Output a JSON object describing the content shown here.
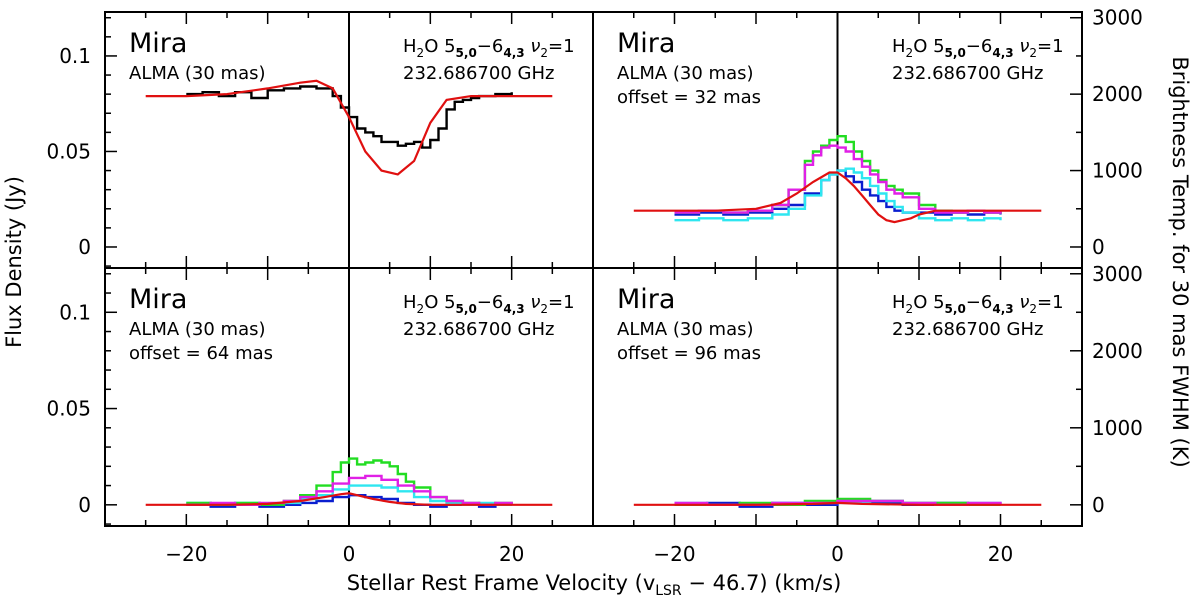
{
  "chart_data": {
    "type": "line",
    "title": "",
    "xlabel_main": "Stellar Rest Frame Velocity (v",
    "xlabel_sub": "LSR",
    "xlabel_tail": " − 46.7) (km/s)",
    "ylabel_left": "Flux Density (Jy)",
    "ylabel_right": "Brightness Temp. for 30 mas FWHM (K)",
    "xlim": [
      -30,
      30
    ],
    "ylim": [
      -0.011,
      0.123
    ],
    "x_ticks": [
      "−20",
      "0",
      "20"
    ],
    "x_tick_values": [
      -20,
      0,
      20
    ],
    "y_ticks": [
      "0",
      "0.05",
      "0.1"
    ],
    "y_tick_values": [
      0,
      0.05,
      0.1
    ],
    "right_ticks": [
      "0",
      "1000",
      "2000",
      "3000"
    ],
    "right_tick_values_K": [
      0,
      1000,
      2000,
      3000
    ],
    "K_per_Jy": 25000,
    "line_label_species": "H",
    "line_label_sub2": "2",
    "line_label_O": "O 5",
    "line_label_up": "5,0",
    "line_label_dash": "−6",
    "line_label_low": "4,3",
    "line_label_nu": " ν",
    "line_label_nu_sub": "2",
    "line_label_eq": "=1",
    "frequency": "232.686700 GHz",
    "star": "Mira",
    "instrument": "ALMA (30 mas)",
    "panels": [
      {
        "id": "top-left",
        "offset_label": "",
        "model_red": {
          "x": [
            -25,
            -20,
            -15,
            -10,
            -6,
            -4,
            -2,
            0,
            2,
            4,
            6,
            8,
            10,
            12,
            15,
            20,
            25
          ],
          "y": [
            0.079,
            0.079,
            0.08,
            0.083,
            0.086,
            0.087,
            0.083,
            0.068,
            0.05,
            0.04,
            0.038,
            0.045,
            0.065,
            0.077,
            0.079,
            0.079,
            0.079
          ]
        },
        "series": [
          {
            "name": "observed",
            "color": "#000000",
            "x": [
              -20,
              -18,
              -16,
              -14,
              -12,
              -10,
              -8,
              -6,
              -4,
              -2,
              -1,
              0,
              1,
              2,
              3,
              4,
              5,
              6,
              7,
              8,
              9,
              10,
              11,
              12,
              13,
              14,
              15,
              16,
              18,
              20
            ],
            "y": [
              0.08,
              0.081,
              0.079,
              0.081,
              0.078,
              0.082,
              0.083,
              0.084,
              0.083,
              0.079,
              0.073,
              0.068,
              0.062,
              0.06,
              0.058,
              0.055,
              0.055,
              0.053,
              0.054,
              0.055,
              0.052,
              0.056,
              0.062,
              0.072,
              0.076,
              0.077,
              0.078,
              0.079,
              0.08,
              0.081
            ]
          }
        ]
      },
      {
        "id": "top-right",
        "offset_label": "offset = 32 mas",
        "model_red": {
          "x": [
            -25,
            -20,
            -15,
            -10,
            -7,
            -5,
            -3,
            -1,
            0,
            1,
            2,
            3,
            4,
            5,
            6,
            7,
            8,
            9,
            10,
            12,
            15,
            20,
            25
          ],
          "y": [
            0.019,
            0.019,
            0.019,
            0.02,
            0.023,
            0.028,
            0.034,
            0.039,
            0.039,
            0.036,
            0.032,
            0.027,
            0.022,
            0.017,
            0.014,
            0.013,
            0.014,
            0.015,
            0.017,
            0.019,
            0.019,
            0.019,
            0.019
          ]
        },
        "series": [
          {
            "name": "blue",
            "color": "#0a1ecf",
            "x": [
              -20,
              -17,
              -14,
              -11,
              -8,
              -6,
              -4,
              -2,
              -1,
              0,
              1,
              2,
              3,
              4,
              5,
              6,
              7,
              8,
              10,
              12,
              14,
              16,
              18,
              20
            ],
            "y": [
              0.017,
              0.018,
              0.017,
              0.018,
              0.02,
              0.022,
              0.028,
              0.035,
              0.038,
              0.04,
              0.037,
              0.034,
              0.03,
              0.027,
              0.024,
              0.021,
              0.019,
              0.018,
              0.018,
              0.017,
              0.018,
              0.017,
              0.018,
              0.017
            ]
          },
          {
            "name": "cyan",
            "color": "#2ee6f0",
            "x": [
              -20,
              -17,
              -14,
              -11,
              -8,
              -6,
              -4,
              -2,
              -1,
              0,
              1,
              2,
              3,
              4,
              5,
              6,
              7,
              8,
              10,
              12,
              14,
              16,
              18,
              20
            ],
            "y": [
              0.014,
              0.015,
              0.014,
              0.015,
              0.017,
              0.02,
              0.027,
              0.035,
              0.038,
              0.04,
              0.041,
              0.039,
              0.036,
              0.032,
              0.028,
              0.024,
              0.021,
              0.018,
              0.015,
              0.014,
              0.015,
              0.014,
              0.015,
              0.014
            ]
          },
          {
            "name": "green",
            "color": "#22dd22",
            "x": [
              -20,
              -17,
              -14,
              -11,
              -8,
              -6,
              -4,
              -3,
              -2,
              -1,
              0,
              1,
              2,
              3,
              4,
              5,
              6,
              7,
              8,
              10,
              12,
              14,
              16,
              18,
              20
            ],
            "y": [
              0.018,
              0.019,
              0.018,
              0.019,
              0.022,
              0.03,
              0.045,
              0.05,
              0.053,
              0.056,
              0.058,
              0.055,
              0.05,
              0.045,
              0.04,
              0.035,
              0.032,
              0.03,
              0.028,
              0.022,
              0.019,
              0.018,
              0.019,
              0.018,
              0.019
            ]
          },
          {
            "name": "magenta",
            "color": "#e020e6",
            "x": [
              -20,
              -17,
              -14,
              -11,
              -8,
              -6,
              -4,
              -3,
              -2,
              -1,
              0,
              1,
              2,
              3,
              4,
              5,
              6,
              7,
              8,
              10,
              12,
              14,
              16,
              18,
              20
            ],
            "y": [
              0.018,
              0.019,
              0.018,
              0.019,
              0.022,
              0.03,
              0.043,
              0.048,
              0.052,
              0.053,
              0.052,
              0.05,
              0.046,
              0.042,
              0.038,
              0.034,
              0.03,
              0.028,
              0.026,
              0.02,
              0.018,
              0.018,
              0.019,
              0.018,
              0.019
            ]
          }
        ]
      },
      {
        "id": "bottom-left",
        "offset_label": "offset = 64 mas",
        "model_red": {
          "x": [
            -25,
            -20,
            -15,
            -10,
            -6,
            -3,
            -1,
            0,
            1,
            3,
            5,
            7,
            10,
            15,
            20,
            25
          ],
          "y": [
            0.0,
            0.0,
            0.0,
            0.0005,
            0.002,
            0.004,
            0.0055,
            0.006,
            0.005,
            0.003,
            0.0015,
            0.0005,
            0.0,
            0.0,
            0.0,
            0.0
          ]
        },
        "series": [
          {
            "name": "blue",
            "color": "#0a1ecf",
            "x": [
              -20,
              -17,
              -14,
              -11,
              -8,
              -6,
              -4,
              -2,
              0,
              2,
              4,
              6,
              8,
              10,
              12,
              14,
              16,
              18,
              20
            ],
            "y": [
              0.0,
              -0.001,
              0.0,
              -0.001,
              0.0,
              0.001,
              0.002,
              0.004,
              0.005,
              0.004,
              0.003,
              0.001,
              0.0,
              -0.001,
              0.0,
              0.0,
              -0.001,
              0.0,
              0.0
            ]
          },
          {
            "name": "cyan",
            "color": "#2ee6f0",
            "x": [
              -20,
              -17,
              -14,
              -11,
              -8,
              -6,
              -4,
              -2,
              0,
              2,
              4,
              6,
              8,
              10,
              12,
              14,
              16,
              18,
              20
            ],
            "y": [
              0.001,
              0.0,
              0.001,
              0.0,
              0.001,
              0.003,
              0.005,
              0.008,
              0.01,
              0.01,
              0.009,
              0.007,
              0.004,
              0.002,
              0.001,
              0.0,
              0.001,
              0.0,
              0.0
            ]
          },
          {
            "name": "green",
            "color": "#22dd22",
            "x": [
              -20,
              -17,
              -14,
              -11,
              -8,
              -6,
              -4,
              -2,
              -1,
              0,
              1,
              2,
              3,
              4,
              5,
              6,
              7,
              8,
              10,
              12,
              14,
              16,
              18,
              20
            ],
            "y": [
              0.001,
              0.0,
              0.001,
              0.0,
              0.002,
              0.005,
              0.01,
              0.017,
              0.022,
              0.024,
              0.021,
              0.022,
              0.023,
              0.022,
              0.02,
              0.016,
              0.012,
              0.009,
              0.004,
              0.002,
              0.001,
              0.0,
              0.001,
              0.0
            ]
          },
          {
            "name": "magenta",
            "color": "#e020e6",
            "x": [
              -20,
              -17,
              -14,
              -11,
              -8,
              -6,
              -4,
              -2,
              0,
              2,
              4,
              6,
              8,
              10,
              12,
              14,
              16,
              18,
              20
            ],
            "y": [
              0.0,
              0.001,
              0.0,
              0.001,
              0.002,
              0.004,
              0.007,
              0.011,
              0.014,
              0.015,
              0.013,
              0.01,
              0.007,
              0.004,
              0.002,
              0.001,
              0.0,
              0.001,
              0.0
            ]
          }
        ]
      },
      {
        "id": "bottom-right",
        "offset_label": "offset = 96 mas",
        "model_red": {
          "x": [
            -25,
            -10,
            -3,
            0,
            3,
            10,
            25
          ],
          "y": [
            0.0,
            0.0,
            0.0005,
            0.001,
            0.0005,
            0.0,
            0.0
          ]
        },
        "series": [
          {
            "name": "blue",
            "color": "#0a1ecf",
            "x": [
              -20,
              -16,
              -12,
              -8,
              -4,
              0,
              4,
              8,
              12,
              16,
              20
            ],
            "y": [
              0.0,
              0.001,
              -0.001,
              0.001,
              0.0,
              0.002,
              0.001,
              0.0,
              0.001,
              0.0,
              0.0
            ]
          },
          {
            "name": "cyan",
            "color": "#2ee6f0",
            "x": [
              -20,
              -16,
              -12,
              -8,
              -4,
              0,
              4,
              8,
              12,
              16,
              20
            ],
            "y": [
              0.001,
              0.0,
              0.0,
              0.001,
              0.001,
              0.001,
              0.002,
              0.001,
              0.0,
              0.001,
              0.0
            ]
          },
          {
            "name": "green",
            "color": "#22dd22",
            "x": [
              -20,
              -16,
              -12,
              -8,
              -4,
              0,
              4,
              8,
              12,
              16,
              20
            ],
            "y": [
              0.0,
              0.0,
              0.001,
              0.0,
              0.002,
              0.003,
              0.002,
              0.001,
              0.001,
              0.0,
              0.0
            ]
          },
          {
            "name": "magenta",
            "color": "#e020e6",
            "x": [
              -20,
              -16,
              -12,
              -8,
              -4,
              0,
              4,
              8,
              12,
              16,
              20
            ],
            "y": [
              0.001,
              0.0,
              0.0,
              0.001,
              0.001,
              0.002,
              0.002,
              0.001,
              0.0,
              0.001,
              0.0
            ]
          }
        ]
      }
    ]
  }
}
